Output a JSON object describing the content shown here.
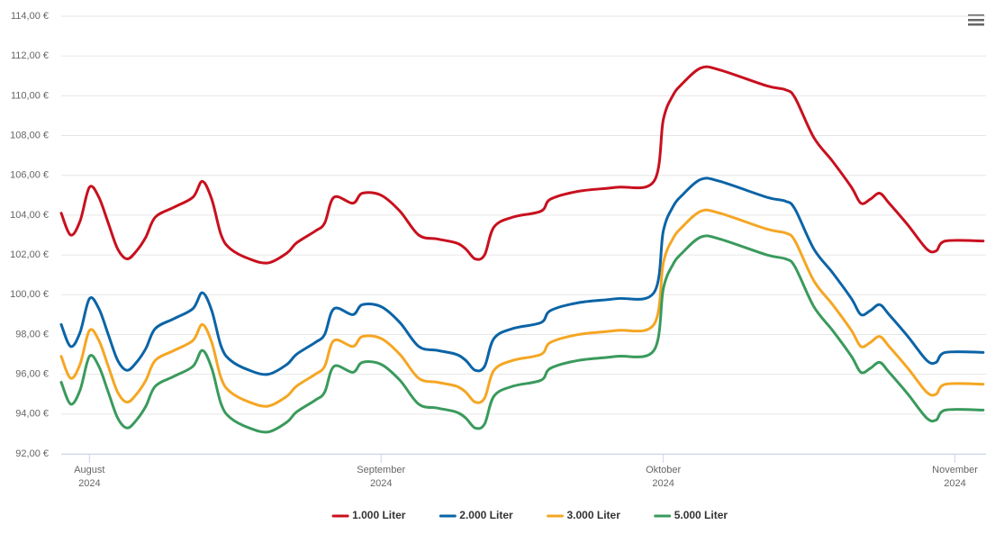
{
  "chart_data": {
    "type": "line",
    "x": [
      0,
      1,
      2,
      3,
      4,
      5,
      6,
      7,
      8,
      9,
      10,
      12,
      14,
      15,
      16,
      17,
      18,
      20,
      22,
      24,
      25,
      27,
      28,
      29,
      31,
      32,
      34,
      36,
      38,
      40,
      42,
      43,
      44,
      45,
      46,
      48,
      51,
      52,
      55,
      59,
      63,
      64,
      65,
      66,
      68,
      70,
      75,
      77,
      78,
      80,
      82,
      84,
      85,
      86,
      87,
      88,
      90,
      92,
      93,
      94,
      98
    ],
    "series": [
      {
        "name": "1.000 Liter",
        "color": "#c8101e",
        "values": [
          104.1,
          103.0,
          103.7,
          105.4,
          104.9,
          103.6,
          102.3,
          101.8,
          102.2,
          102.9,
          103.9,
          104.4,
          104.9,
          105.7,
          104.8,
          103.0,
          102.3,
          101.8,
          101.6,
          102.1,
          102.6,
          103.2,
          103.6,
          104.9,
          104.6,
          105.1,
          105.0,
          104.2,
          103.0,
          102.8,
          102.6,
          102.3,
          101.8,
          102.0,
          103.4,
          103.9,
          104.2,
          104.8,
          105.2,
          105.4,
          105.7,
          108.8,
          110.0,
          110.6,
          111.4,
          111.3,
          110.5,
          110.3,
          109.9,
          107.9,
          106.7,
          105.4,
          104.6,
          104.8,
          105.1,
          104.6,
          103.5,
          102.3,
          102.2,
          102.7,
          102.7
        ]
      },
      {
        "name": "2.000 Liter",
        "color": "#0b64a6",
        "values": [
          98.5,
          97.4,
          98.1,
          99.8,
          99.3,
          98.0,
          96.7,
          96.2,
          96.6,
          97.3,
          98.3,
          98.8,
          99.3,
          100.1,
          99.2,
          97.4,
          96.7,
          96.2,
          96.0,
          96.5,
          97.0,
          97.6,
          98.0,
          99.3,
          99.0,
          99.5,
          99.4,
          98.6,
          97.4,
          97.2,
          97.0,
          96.7,
          96.2,
          96.4,
          97.8,
          98.3,
          98.6,
          99.2,
          99.6,
          99.8,
          100.1,
          103.2,
          104.4,
          105.0,
          105.8,
          105.7,
          104.9,
          104.7,
          104.3,
          102.3,
          101.1,
          99.8,
          99.0,
          99.2,
          99.5,
          99.0,
          97.9,
          96.7,
          96.6,
          97.1,
          97.1
        ]
      },
      {
        "name": "3.000 Liter",
        "color": "#f5a623",
        "values": [
          96.9,
          95.8,
          96.5,
          98.2,
          97.7,
          96.4,
          95.1,
          94.6,
          95.0,
          95.7,
          96.7,
          97.2,
          97.7,
          98.5,
          97.6,
          95.8,
          95.1,
          94.6,
          94.4,
          94.9,
          95.4,
          96.0,
          96.4,
          97.7,
          97.4,
          97.9,
          97.8,
          97.0,
          95.8,
          95.6,
          95.4,
          95.1,
          94.6,
          94.8,
          96.2,
          96.7,
          97.0,
          97.6,
          98.0,
          98.2,
          98.5,
          101.6,
          102.8,
          103.4,
          104.2,
          104.1,
          103.3,
          103.1,
          102.7,
          100.7,
          99.5,
          98.2,
          97.4,
          97.6,
          97.9,
          97.4,
          96.3,
          95.1,
          95.0,
          95.5,
          95.5
        ]
      },
      {
        "name": "5.000 Liter",
        "color": "#3a9a5c",
        "values": [
          95.6,
          94.5,
          95.2,
          96.9,
          96.4,
          95.1,
          93.8,
          93.3,
          93.7,
          94.4,
          95.4,
          95.9,
          96.4,
          97.2,
          96.3,
          94.5,
          93.8,
          93.3,
          93.1,
          93.6,
          94.1,
          94.7,
          95.1,
          96.4,
          96.1,
          96.6,
          96.5,
          95.7,
          94.5,
          94.3,
          94.1,
          93.8,
          93.3,
          93.5,
          94.9,
          95.4,
          95.7,
          96.3,
          96.7,
          96.9,
          97.2,
          100.3,
          101.5,
          102.1,
          102.9,
          102.8,
          102.0,
          101.8,
          101.4,
          99.4,
          98.2,
          96.9,
          96.1,
          96.3,
          96.6,
          96.1,
          95.0,
          93.8,
          93.7,
          94.2,
          94.2
        ]
      }
    ],
    "xlim": [
      0,
      98.3
    ],
    "xticks": [
      {
        "value": 3,
        "label": [
          "August",
          "2024"
        ]
      },
      {
        "value": 34,
        "label": [
          "September",
          "2024"
        ]
      },
      {
        "value": 64,
        "label": [
          "Oktober",
          "2024"
        ]
      },
      {
        "value": 95,
        "label": [
          "November",
          "2024"
        ]
      }
    ],
    "ylim": [
      92,
      114
    ],
    "yticks": [
      {
        "value": 92,
        "label": "92,00 €"
      },
      {
        "value": 94,
        "label": "94,00 €"
      },
      {
        "value": 96,
        "label": "96,00 €"
      },
      {
        "value": 98,
        "label": "98,00 €"
      },
      {
        "value": 100,
        "label": "100,00 €"
      },
      {
        "value": 102,
        "label": "102,00 €"
      },
      {
        "value": 104,
        "label": "104,00 €"
      },
      {
        "value": 106,
        "label": "106,00 €"
      },
      {
        "value": 108,
        "label": "108,00 €"
      },
      {
        "value": 110,
        "label": "110,00 €"
      },
      {
        "value": 112,
        "label": "112,00 €"
      },
      {
        "value": 114,
        "label": "114,00 €"
      }
    ],
    "grid": true,
    "legend": "bottom"
  }
}
